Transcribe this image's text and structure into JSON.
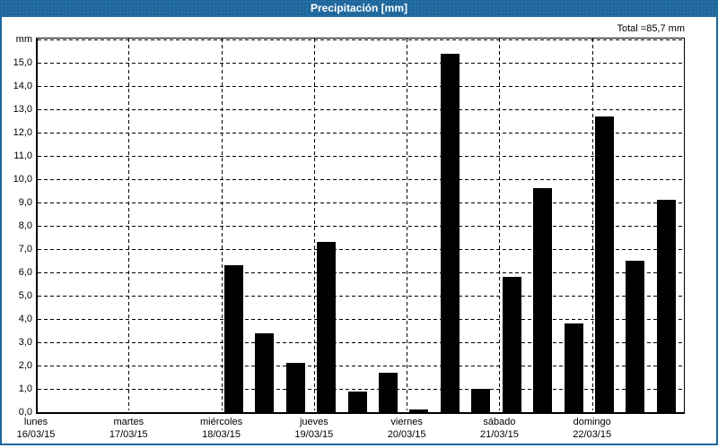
{
  "window": {
    "title": "Precipitación [mm]"
  },
  "chart": {
    "total_label": "Total =85,7 mm",
    "unit_label": "mm",
    "colors": {
      "titlebar": "#1D679C",
      "titlebarText": "#FFFFFF",
      "border": "#1D679C",
      "bg": "#FFFFFF",
      "bar": "#000000",
      "grid": "#000000",
      "text": "#000000"
    }
  },
  "chart_data": {
    "type": "bar",
    "title": "Precipitación [mm]",
    "ylabel": "mm",
    "ylim": [
      0,
      16.1
    ],
    "ytick_step": 1,
    "decimal_separator": ",",
    "grid": true,
    "legend": false,
    "bar_color": "#000000",
    "total": {
      "label": "Total =85,7 mm",
      "value_mm": 85.7
    },
    "bars_per_day": 3,
    "ytick_labels_top_to_bottom": [
      "mm",
      "15,0",
      "14,0",
      "13,0",
      "12,0",
      "11,0",
      "10,0",
      "9,0",
      "8,0",
      "7,0",
      "6,0",
      "5,0",
      "4,0",
      "3,0",
      "2,0",
      "1,0",
      "0,0"
    ],
    "days": [
      {
        "name": "lunes",
        "date": "16/03/15",
        "values": [
          0,
          0,
          0
        ]
      },
      {
        "name": "martes",
        "date": "17/03/15",
        "values": [
          0,
          0,
          0
        ]
      },
      {
        "name": "miércoles",
        "date": "18/03/15",
        "values": [
          6.3,
          3.4,
          2.1
        ]
      },
      {
        "name": "jueves",
        "date": "19/03/15",
        "values": [
          7.3,
          0.9,
          1.7
        ]
      },
      {
        "name": "viernes",
        "date": "20/03/15",
        "values": [
          0.1,
          15.4,
          1.0
        ]
      },
      {
        "name": "sábado",
        "date": "21/03/15",
        "values": [
          5.8,
          9.6,
          3.8
        ]
      },
      {
        "name": "domingo",
        "date": "22/03/15",
        "values": [
          12.7,
          6.5,
          9.1
        ]
      }
    ]
  }
}
